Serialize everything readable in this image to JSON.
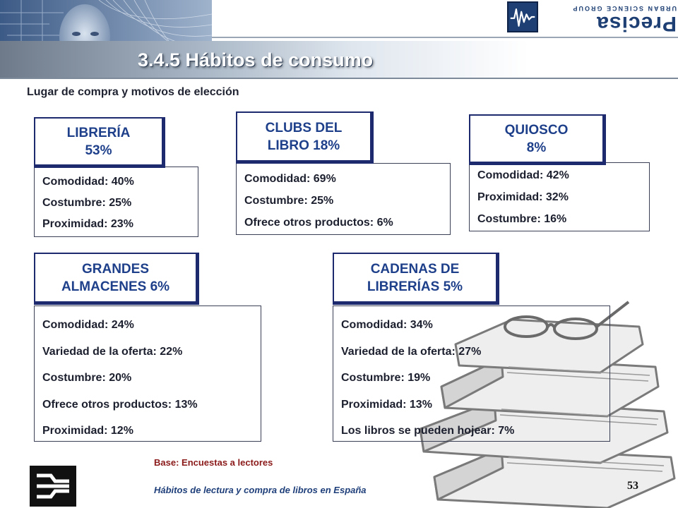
{
  "header": {
    "title": "3.4.5 Hábitos de consumo",
    "logo": {
      "icon": "waveform-logo-icon",
      "word": "Precisa",
      "tagline": "URBAN SCIENCE GROUP"
    }
  },
  "subtitle": "Lugar de compra y motivos de elección",
  "categories": [
    {
      "title_lines": [
        "LIBRERÍA",
        "53%"
      ],
      "items": [
        "Comodidad: 40%",
        "Costumbre: 25%",
        "Proximidad: 23%"
      ]
    },
    {
      "title_lines": [
        "CLUBS DEL",
        "LIBRO 18%"
      ],
      "items": [
        "Comodidad: 69%",
        "Costumbre: 25%",
        "Ofrece otros productos: 6%"
      ]
    },
    {
      "title_lines": [
        "QUIOSCO",
        "8%"
      ],
      "items": [
        "Comodidad: 42%",
        "Proximidad: 32%",
        "Costumbre: 16%"
      ]
    },
    {
      "title_lines": [
        "GRANDES",
        "ALMACENES 6%"
      ],
      "items": [
        "Comodidad: 24%",
        "Variedad de la oferta: 22%",
        "Costumbre: 20%",
        "Ofrece otros productos: 13%",
        "Proximidad: 12%"
      ]
    },
    {
      "title_lines": [
        "CADENAS DE",
        "LIBRERÍAS 5%"
      ],
      "items": [
        "Comodidad: 34%",
        "Variedad de la oferta: 27%",
        "Costumbre: 19%",
        "Proximidad: 13%",
        "Los libros se pueden hojear: 7%"
      ]
    }
  ],
  "footer": {
    "base": "Base:  Encuestas a lectores",
    "study": "Hábitos de lectura y compra de libros en España",
    "page": "53",
    "corner_icon": "publisher-logo-icon"
  },
  "colors": {
    "accent": "#1e3f8a",
    "box_border": "#1e2a6e",
    "base_note": "#8b1a1a"
  }
}
